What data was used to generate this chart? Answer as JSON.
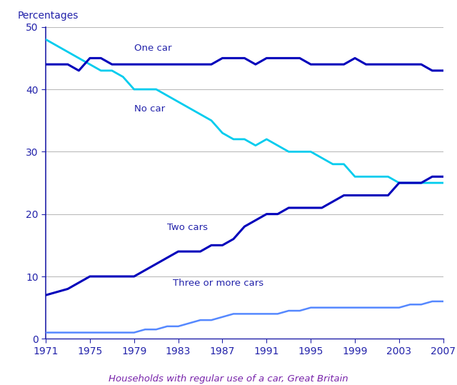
{
  "ylabel": "Percentages",
  "caption": "Households with regular use of a car, Great Britain",
  "years": [
    1971,
    1972,
    1973,
    1974,
    1975,
    1976,
    1977,
    1978,
    1979,
    1980,
    1981,
    1982,
    1983,
    1984,
    1985,
    1986,
    1987,
    1988,
    1989,
    1990,
    1991,
    1992,
    1993,
    1994,
    1995,
    1996,
    1997,
    1998,
    1999,
    2000,
    2001,
    2002,
    2003,
    2004,
    2005,
    2006,
    2007
  ],
  "one_car": [
    44,
    44,
    44,
    43,
    45,
    45,
    44,
    44,
    44,
    44,
    44,
    44,
    44,
    44,
    44,
    44,
    45,
    45,
    45,
    44,
    45,
    45,
    45,
    45,
    44,
    44,
    44,
    44,
    45,
    44,
    44,
    44,
    44,
    44,
    44,
    43,
    43
  ],
  "no_car": [
    48,
    47,
    46,
    45,
    44,
    43,
    43,
    42,
    40,
    40,
    40,
    39,
    38,
    37,
    36,
    35,
    33,
    32,
    32,
    31,
    32,
    31,
    30,
    30,
    30,
    29,
    28,
    28,
    26,
    26,
    26,
    26,
    25,
    25,
    25,
    25,
    25
  ],
  "two_cars": [
    7,
    7.5,
    8,
    9,
    10,
    10,
    10,
    10,
    10,
    11,
    12,
    13,
    14,
    14,
    14,
    15,
    15,
    16,
    18,
    19,
    20,
    20,
    21,
    21,
    21,
    21,
    22,
    23,
    23,
    23,
    23,
    23,
    25,
    25,
    25,
    26,
    26
  ],
  "three_or_more": [
    1,
    1,
    1,
    1,
    1,
    1,
    1,
    1,
    1,
    1.5,
    1.5,
    2,
    2,
    2.5,
    3,
    3,
    3.5,
    4,
    4,
    4,
    4,
    4,
    4.5,
    4.5,
    5,
    5,
    5,
    5,
    5,
    5,
    5,
    5,
    5,
    5.5,
    5.5,
    6,
    6
  ],
  "one_car_color": "#0000BB",
  "no_car_color": "#00CCEE",
  "two_cars_color": "#0000BB",
  "three_color": "#5588FF",
  "label_one_car": "One car",
  "label_no_car": "No car",
  "label_two_cars": "Two cars",
  "label_three": "Three or more cars",
  "ylim": [
    0,
    50
  ],
  "yticks": [
    0,
    10,
    20,
    30,
    40,
    50
  ],
  "xticks": [
    1971,
    1975,
    1979,
    1983,
    1987,
    1991,
    1995,
    1999,
    2003,
    2007
  ],
  "background_color": "#ffffff",
  "grid_color": "#bbbbbb",
  "tick_label_color": "#2222AA",
  "axis_label_color": "#2222AA",
  "caption_color": "#7722AA",
  "spine_color": "#2222AA",
  "text_label_color": "#2222AA"
}
